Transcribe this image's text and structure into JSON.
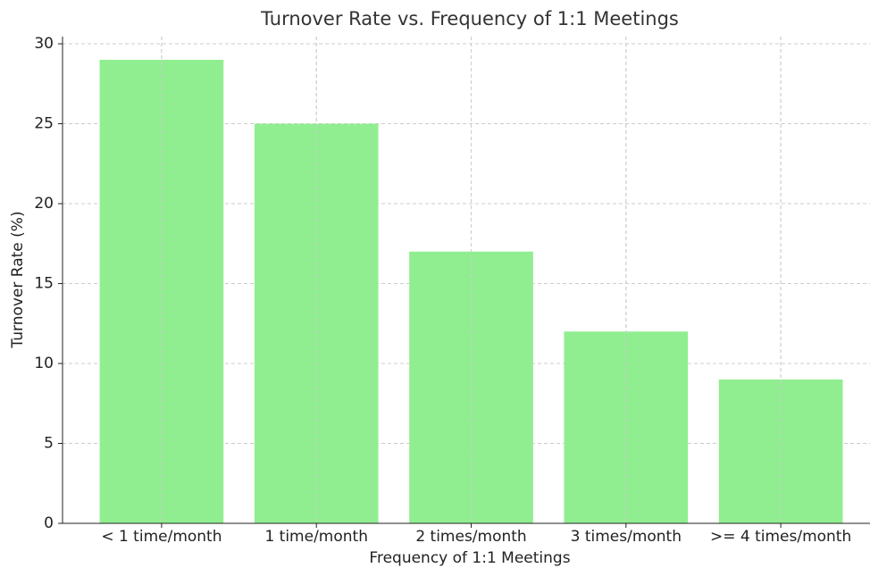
{
  "chart_data": {
    "type": "bar",
    "title": "Turnover Rate vs. Frequency of 1:1 Meetings",
    "xlabel": "Frequency of 1:1 Meetings",
    "ylabel": "Turnover Rate (%)",
    "categories": [
      "< 1 time/month",
      "1 time/month",
      "2 times/month",
      "3 times/month",
      ">= 4 times/month"
    ],
    "values": [
      29,
      25,
      17,
      12,
      9
    ],
    "color": "#90ee90",
    "ylim": [
      0,
      30.45
    ],
    "yticks": [
      0,
      5,
      10,
      15,
      20,
      25,
      30
    ],
    "grid": true
  }
}
